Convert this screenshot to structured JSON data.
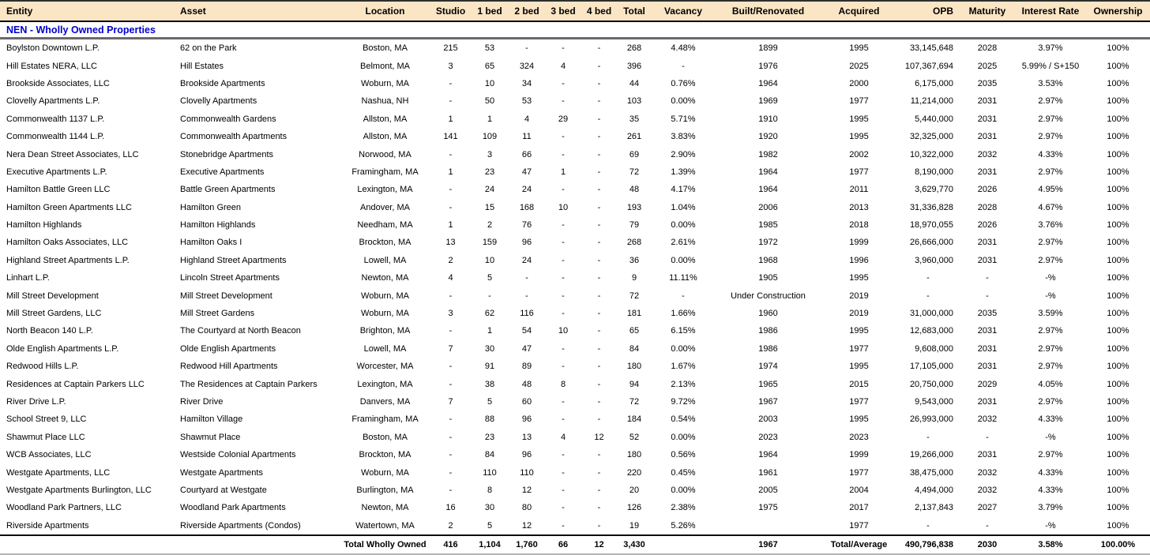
{
  "section_title": "NEN - Wholly Owned Properties",
  "colors": {
    "header_bg": "#FAE5C5",
    "title_color": "#0000CC"
  },
  "table": {
    "columns": [
      {
        "key": "entity",
        "label": "Entity",
        "align": "left"
      },
      {
        "key": "asset",
        "label": "Asset",
        "align": "left"
      },
      {
        "key": "location",
        "label": "Location",
        "align": "center"
      },
      {
        "key": "studio",
        "label": "Studio",
        "align": "center"
      },
      {
        "key": "bed1",
        "label": "1 bed",
        "align": "center"
      },
      {
        "key": "bed2",
        "label": "2 bed",
        "align": "center"
      },
      {
        "key": "bed3",
        "label": "3 bed",
        "align": "center"
      },
      {
        "key": "bed4",
        "label": "4 bed",
        "align": "center"
      },
      {
        "key": "total",
        "label": "Total",
        "align": "center"
      },
      {
        "key": "vacancy",
        "label": "Vacancy",
        "align": "center"
      },
      {
        "key": "built_renovated",
        "label": "Built/Renovated",
        "align": "center"
      },
      {
        "key": "acquired",
        "label": "Acquired",
        "align": "center"
      },
      {
        "key": "opb",
        "label": "OPB",
        "align": "right"
      },
      {
        "key": "maturity",
        "label": "Maturity",
        "align": "center"
      },
      {
        "key": "interest_rate",
        "label": "Interest Rate",
        "align": "center"
      },
      {
        "key": "ownership",
        "label": "Ownership",
        "align": "center"
      }
    ],
    "rows": [
      [
        "Boylston Downtown L.P.",
        "62 on the Park",
        "Boston, MA",
        "215",
        "53",
        "-",
        "-",
        "-",
        "268",
        "4.48%",
        "1899",
        "1995",
        "33,145,648",
        "2028",
        "3.97%",
        "100%"
      ],
      [
        "Hill Estates NERA, LLC",
        "Hill Estates",
        "Belmont, MA",
        "3",
        "65",
        "324",
        "4",
        "-",
        "396",
        "-",
        "1976",
        "2025",
        "107,367,694",
        "2025",
        "5.99% / S+150",
        "100%"
      ],
      [
        "Brookside Associates, LLC",
        "Brookside Apartments",
        "Woburn, MA",
        "-",
        "10",
        "34",
        "-",
        "-",
        "44",
        "0.76%",
        "1964",
        "2000",
        "6,175,000",
        "2035",
        "3.53%",
        "100%"
      ],
      [
        "Clovelly Apartments L.P.",
        "Clovelly Apartments",
        "Nashua, NH",
        "-",
        "50",
        "53",
        "-",
        "-",
        "103",
        "0.00%",
        "1969",
        "1977",
        "11,214,000",
        "2031",
        "2.97%",
        "100%"
      ],
      [
        "Commonwealth 1137 L.P.",
        "Commonwealth Gardens",
        "Allston, MA",
        "1",
        "1",
        "4",
        "29",
        "-",
        "35",
        "5.71%",
        "1910",
        "1995",
        "5,440,000",
        "2031",
        "2.97%",
        "100%"
      ],
      [
        "Commonwealth 1144 L.P.",
        "Commonwealth Apartments",
        "Allston, MA",
        "141",
        "109",
        "11",
        "-",
        "-",
        "261",
        "3.83%",
        "1920",
        "1995",
        "32,325,000",
        "2031",
        "2.97%",
        "100%"
      ],
      [
        "Nera Dean Street Associates, LLC",
        "Stonebridge Apartments",
        "Norwood, MA",
        "-",
        "3",
        "66",
        "-",
        "-",
        "69",
        "2.90%",
        "1982",
        "2002",
        "10,322,000",
        "2032",
        "4.33%",
        "100%"
      ],
      [
        "Executive Apartments L.P.",
        "Executive Apartments",
        "Framingham, MA",
        "1",
        "23",
        "47",
        "1",
        "-",
        "72",
        "1.39%",
        "1964",
        "1977",
        "8,190,000",
        "2031",
        "2.97%",
        "100%"
      ],
      [
        "Hamilton Battle Green LLC",
        "Battle Green Apartments",
        "Lexington, MA",
        "-",
        "24",
        "24",
        "-",
        "-",
        "48",
        "4.17%",
        "1964",
        "2011",
        "3,629,770",
        "2026",
        "4.95%",
        "100%"
      ],
      [
        "Hamilton Green Apartments LLC",
        "Hamilton Green",
        "Andover, MA",
        "-",
        "15",
        "168",
        "10",
        "-",
        "193",
        "1.04%",
        "2006",
        "2013",
        "31,336,828",
        "2028",
        "4.67%",
        "100%"
      ],
      [
        "Hamilton Highlands",
        "Hamilton Highlands",
        "Needham, MA",
        "1",
        "2",
        "76",
        "-",
        "-",
        "79",
        "0.00%",
        "1985",
        "2018",
        "18,970,055",
        "2026",
        "3.76%",
        "100%"
      ],
      [
        "Hamilton Oaks Associates, LLC",
        "Hamilton Oaks I",
        "Brockton, MA",
        "13",
        "159",
        "96",
        "-",
        "-",
        "268",
        "2.61%",
        "1972",
        "1999",
        "26,666,000",
        "2031",
        "2.97%",
        "100%"
      ],
      [
        "Highland Street Apartments L.P.",
        "Highland Street Apartments",
        "Lowell, MA",
        "2",
        "10",
        "24",
        "-",
        "-",
        "36",
        "0.00%",
        "1968",
        "1996",
        "3,960,000",
        "2031",
        "2.97%",
        "100%"
      ],
      [
        "Linhart L.P.",
        "Lincoln Street Apartments",
        "Newton, MA",
        "4",
        "5",
        "-",
        "-",
        "-",
        "9",
        "11.11%",
        "1905",
        "1995",
        "-",
        "-",
        "-%",
        "100%"
      ],
      [
        "Mill Street Development",
        "Mill Street Development",
        "Woburn, MA",
        "-",
        "-",
        "-",
        "-",
        "-",
        "72",
        "-",
        "Under Construction",
        "2019",
        "-",
        "-",
        "-%",
        "100%"
      ],
      [
        "Mill Street Gardens, LLC",
        "Mill Street Gardens",
        "Woburn, MA",
        "3",
        "62",
        "116",
        "-",
        "-",
        "181",
        "1.66%",
        "1960",
        "2019",
        "31,000,000",
        "2035",
        "3.59%",
        "100%"
      ],
      [
        "North Beacon 140 L.P.",
        "The Courtyard at North Beacon",
        "Brighton, MA",
        "-",
        "1",
        "54",
        "10",
        "-",
        "65",
        "6.15%",
        "1986",
        "1995",
        "12,683,000",
        "2031",
        "2.97%",
        "100%"
      ],
      [
        "Olde English Apartments L.P.",
        "Olde English Apartments",
        "Lowell, MA",
        "7",
        "30",
        "47",
        "-",
        "-",
        "84",
        "0.00%",
        "1986",
        "1977",
        "9,608,000",
        "2031",
        "2.97%",
        "100%"
      ],
      [
        "Redwood Hills L.P.",
        "Redwood Hill Apartments",
        "Worcester, MA",
        "-",
        "91",
        "89",
        "-",
        "-",
        "180",
        "1.67%",
        "1974",
        "1995",
        "17,105,000",
        "2031",
        "2.97%",
        "100%"
      ],
      [
        "Residences at Captain Parkers LLC",
        "The Residences at Captain Parkers",
        "Lexington, MA",
        "-",
        "38",
        "48",
        "8",
        "-",
        "94",
        "2.13%",
        "1965",
        "2015",
        "20,750,000",
        "2029",
        "4.05%",
        "100%"
      ],
      [
        "River Drive L.P.",
        "River Drive",
        "Danvers, MA",
        "7",
        "5",
        "60",
        "-",
        "-",
        "72",
        "9.72%",
        "1967",
        "1977",
        "9,543,000",
        "2031",
        "2.97%",
        "100%"
      ],
      [
        "School Street 9, LLC",
        "Hamilton Village",
        "Framingham, MA",
        "-",
        "88",
        "96",
        "-",
        "-",
        "184",
        "0.54%",
        "2003",
        "1995",
        "26,993,000",
        "2032",
        "4.33%",
        "100%"
      ],
      [
        "Shawmut Place LLC",
        "Shawmut Place",
        "Boston, MA",
        "-",
        "23",
        "13",
        "4",
        "12",
        "52",
        "0.00%",
        "2023",
        "2023",
        "-",
        "-",
        "-%",
        "100%"
      ],
      [
        "WCB Associates, LLC",
        "Westside Colonial Apartments",
        "Brockton, MA",
        "-",
        "84",
        "96",
        "-",
        "-",
        "180",
        "0.56%",
        "1964",
        "1999",
        "19,266,000",
        "2031",
        "2.97%",
        "100%"
      ],
      [
        "Westgate Apartments, LLC",
        "Westgate Apartments",
        "Woburn, MA",
        "-",
        "110",
        "110",
        "-",
        "-",
        "220",
        "0.45%",
        "1961",
        "1977",
        "38,475,000",
        "2032",
        "4.33%",
        "100%"
      ],
      [
        "Westgate Apartments Burlington, LLC",
        "Courtyard at Westgate",
        "Burlington, MA",
        "-",
        "8",
        "12",
        "-",
        "-",
        "20",
        "0.00%",
        "2005",
        "2004",
        "4,494,000",
        "2032",
        "4.33%",
        "100%"
      ],
      [
        "Woodland Park Partners, LLC",
        "Woodland Park Apartments",
        "Newton, MA",
        "16",
        "30",
        "80",
        "-",
        "-",
        "126",
        "2.38%",
        "1975",
        "2017",
        "2,137,843",
        "2027",
        "3.79%",
        "100%"
      ],
      [
        "Riverside Apartments",
        "Riverside Apartments (Condos)",
        "Watertown, MA",
        "2",
        "5",
        "12",
        "-",
        "-",
        "19",
        "5.26%",
        "",
        "1977",
        "-",
        "-",
        "-%",
        "100%"
      ]
    ],
    "total_row": [
      "",
      "",
      "Total Wholly Owned",
      "416",
      "1,104",
      "1,760",
      "66",
      "12",
      "3,430",
      "",
      "1967",
      "Total/Average",
      "490,796,838",
      "2030",
      "3.58%",
      "100.00%"
    ]
  }
}
